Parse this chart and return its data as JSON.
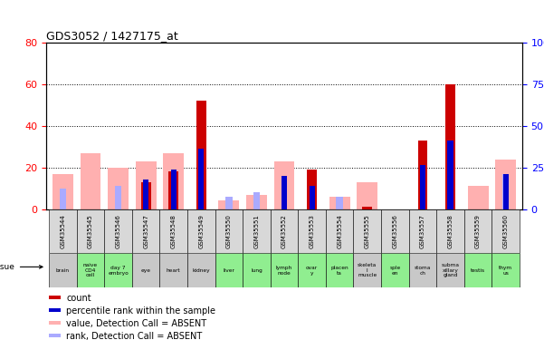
{
  "title": "GDS3052 / 1427175_at",
  "samples": [
    "GSM35544",
    "GSM35545",
    "GSM35546",
    "GSM35547",
    "GSM35548",
    "GSM35549",
    "GSM35550",
    "GSM35551",
    "GSM35552",
    "GSM35553",
    "GSM35554",
    "GSM35555",
    "GSM35556",
    "GSM35557",
    "GSM35558",
    "GSM35559",
    "GSM35560"
  ],
  "tissues": [
    "brain",
    "naive\nCD4\ncell",
    "day 7\nembryо",
    "eye",
    "heart",
    "kidney",
    "liver",
    "lung",
    "lymph\nnode",
    "ovar\ny",
    "placen\nta",
    "skeleta\nl\nmuscle",
    "sple\nen",
    "stoma\nch",
    "subma\nxillary\ngland",
    "testis",
    "thym\nus"
  ],
  "tissue_colors": [
    "#c8c8c8",
    "#90ee90",
    "#90ee90",
    "#c8c8c8",
    "#c8c8c8",
    "#c8c8c8",
    "#90ee90",
    "#90ee90",
    "#90ee90",
    "#90ee90",
    "#90ee90",
    "#c8c8c8",
    "#90ee90",
    "#c8c8c8",
    "#c8c8c8",
    "#90ee90",
    "#90ee90"
  ],
  "sample_bg_color": "#d8d8d8",
  "count_red": [
    0,
    0,
    0,
    13,
    18,
    52,
    0,
    0,
    0,
    19,
    0,
    1,
    0,
    33,
    60,
    0,
    0
  ],
  "rank_blue": [
    0,
    0,
    0,
    14,
    19,
    29,
    0,
    0,
    16,
    11,
    0,
    0,
    0,
    21,
    33,
    0,
    17
  ],
  "value_pink": [
    17,
    27,
    20,
    23,
    27,
    0,
    4,
    7,
    23,
    0,
    6,
    13,
    0,
    0,
    0,
    11,
    24
  ],
  "rank_lightblue": [
    10,
    0,
    11,
    0,
    0,
    0,
    6,
    8,
    0,
    0,
    6,
    0,
    0,
    0,
    0,
    0,
    17
  ],
  "ylim_left": [
    0,
    80
  ],
  "ylim_right": [
    0,
    100
  ],
  "yticks_left": [
    0,
    20,
    40,
    60,
    80
  ],
  "yticks_right": [
    0,
    25,
    50,
    75,
    100
  ],
  "yticklabels_right": [
    "0",
    "25",
    "50",
    "75",
    "100%"
  ],
  "color_red": "#cc0000",
  "color_blue": "#0000cc",
  "color_pink": "#ffb0b0",
  "color_lightblue": "#aaaaff",
  "legend_items": [
    "count",
    "percentile rank within the sample",
    "value, Detection Call = ABSENT",
    "rank, Detection Call = ABSENT"
  ],
  "legend_colors": [
    "#cc0000",
    "#0000cc",
    "#ffb0b0",
    "#aaaaff"
  ]
}
